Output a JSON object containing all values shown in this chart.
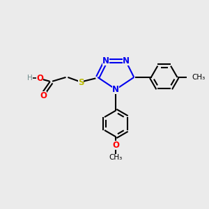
{
  "bg_color": "#ebebeb",
  "atom_colors": {
    "C": "#000000",
    "N": "#0000ee",
    "O": "#ff0000",
    "S": "#bbbb00",
    "H": "#6e8b8b"
  },
  "figsize": [
    3.0,
    3.0
  ],
  "dpi": 100
}
